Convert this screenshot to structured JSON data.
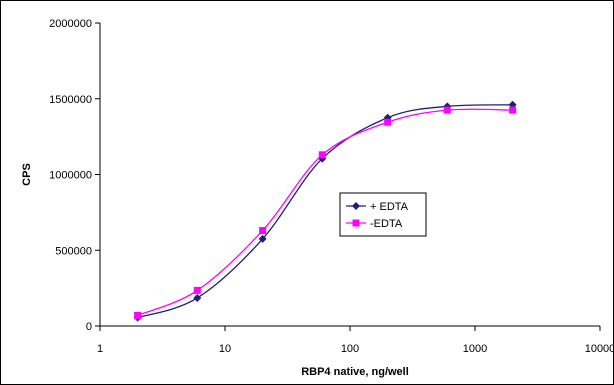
{
  "chart_data": {
    "type": "line",
    "xlabel": "RBP4 native, ng/well",
    "ylabel": "CPS",
    "xscale": "log",
    "xlim": [
      1,
      10000
    ],
    "ylim": [
      0,
      2000000
    ],
    "x_ticks": [
      1,
      10,
      100,
      1000,
      10000
    ],
    "x_tick_labels": [
      "1",
      "10",
      "100",
      "1000",
      "10000"
    ],
    "y_ticks": [
      0,
      500000,
      1000000,
      1500000,
      2000000
    ],
    "y_tick_labels": [
      "0",
      "500000",
      "1000000",
      "1500000",
      "2000000"
    ],
    "grid": false,
    "legend_position": "center-right",
    "series": [
      {
        "name": "+ EDTA",
        "color": "#1f1f7a",
        "marker": "diamond",
        "x": [
          2,
          6,
          20,
          60,
          200,
          600,
          2000
        ],
        "y": [
          55000,
          185000,
          575000,
          1105000,
          1375000,
          1450000,
          1460000
        ]
      },
      {
        "name": "-EDTA",
        "color": "#ff00ff",
        "marker": "square",
        "x": [
          2,
          6,
          20,
          60,
          200,
          600,
          2000
        ],
        "y": [
          70000,
          235000,
          630000,
          1130000,
          1345000,
          1425000,
          1425000
        ]
      }
    ]
  }
}
